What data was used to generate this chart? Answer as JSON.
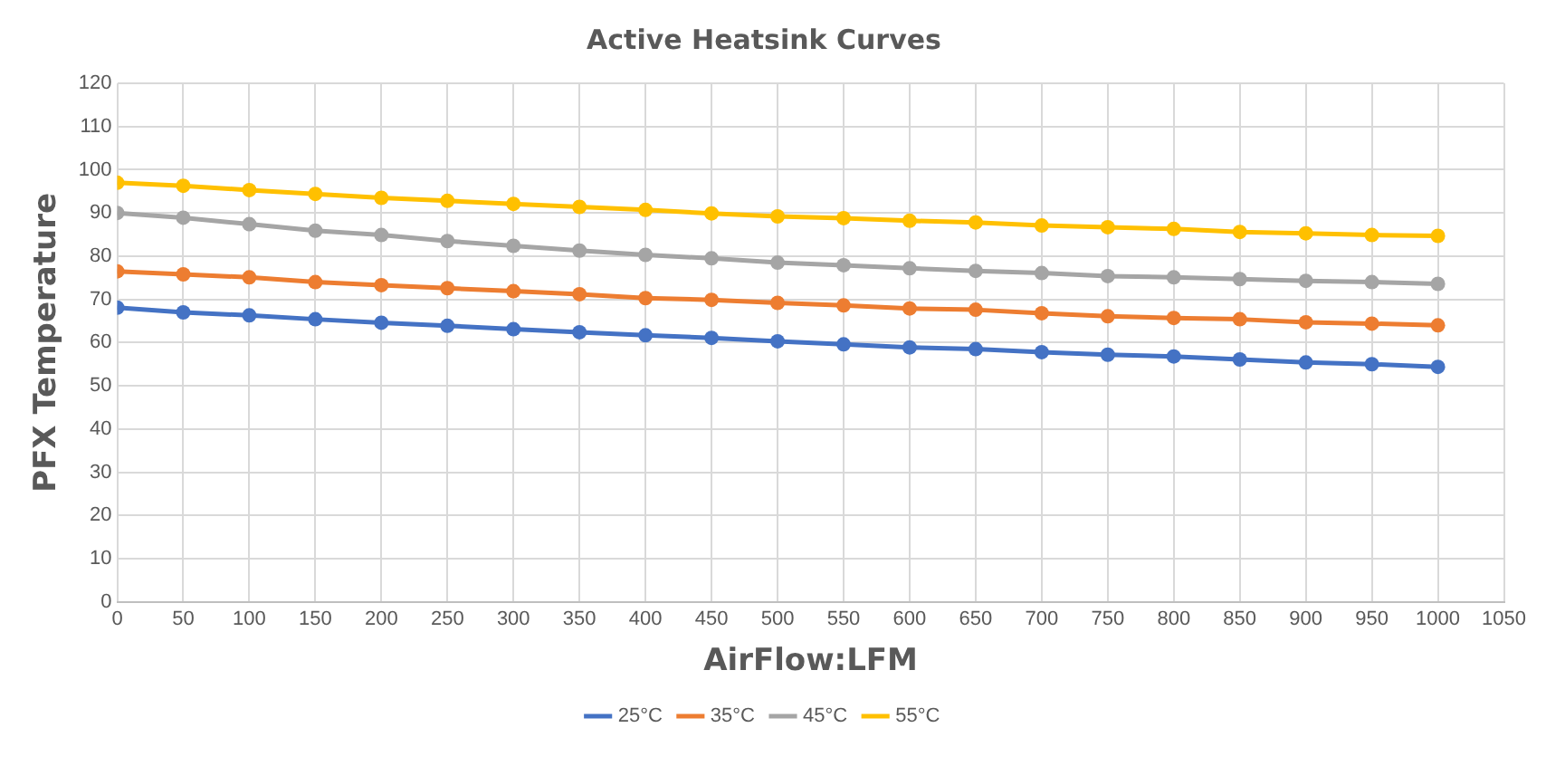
{
  "chart_data": {
    "type": "line",
    "title": "Active Heatsink Curves",
    "xlabel": "AirFlow:LFM",
    "ylabel": "PFX Temperature",
    "x": [
      0,
      50,
      100,
      150,
      200,
      250,
      300,
      350,
      400,
      450,
      500,
      550,
      600,
      650,
      700,
      750,
      800,
      850,
      900,
      950,
      1000
    ],
    "series": [
      {
        "name": "25°C",
        "color": "#4472c4",
        "values": [
          68.1,
          67.0,
          66.3,
          65.4,
          64.6,
          63.9,
          63.1,
          62.4,
          61.7,
          61.1,
          60.3,
          59.6,
          58.9,
          58.5,
          57.8,
          57.2,
          56.8,
          56.1,
          55.4,
          55.0,
          54.4
        ]
      },
      {
        "name": "35°C",
        "color": "#ed7d31",
        "values": [
          76.5,
          75.8,
          75.1,
          74.0,
          73.3,
          72.6,
          71.9,
          71.2,
          70.3,
          69.9,
          69.2,
          68.6,
          67.9,
          67.6,
          66.8,
          66.1,
          65.7,
          65.4,
          64.7,
          64.4,
          64.0
        ]
      },
      {
        "name": "45°C",
        "color": "#a5a5a5",
        "values": [
          90.0,
          88.9,
          87.4,
          85.9,
          84.9,
          83.5,
          82.4,
          81.3,
          80.3,
          79.5,
          78.5,
          77.9,
          77.2,
          76.6,
          76.1,
          75.4,
          75.1,
          74.7,
          74.3,
          74.0,
          73.6
        ]
      },
      {
        "name": "55°C",
        "color": "#ffc000",
        "values": [
          97.0,
          96.3,
          95.3,
          94.4,
          93.5,
          92.8,
          92.1,
          91.4,
          90.7,
          89.9,
          89.2,
          88.8,
          88.2,
          87.8,
          87.1,
          86.7,
          86.3,
          85.6,
          85.3,
          84.9,
          84.7
        ]
      }
    ],
    "xlim": [
      0,
      1050
    ],
    "xticks": [
      0,
      50,
      100,
      150,
      200,
      250,
      300,
      350,
      400,
      450,
      500,
      550,
      600,
      650,
      700,
      750,
      800,
      850,
      900,
      950,
      1000,
      1050
    ],
    "ylim": [
      0,
      120
    ],
    "yticks": [
      0,
      10,
      20,
      30,
      40,
      50,
      60,
      70,
      80,
      90,
      100,
      110,
      120
    ],
    "grid": true,
    "legend": "bottom",
    "marker": "circle",
    "line_style": "solid"
  }
}
